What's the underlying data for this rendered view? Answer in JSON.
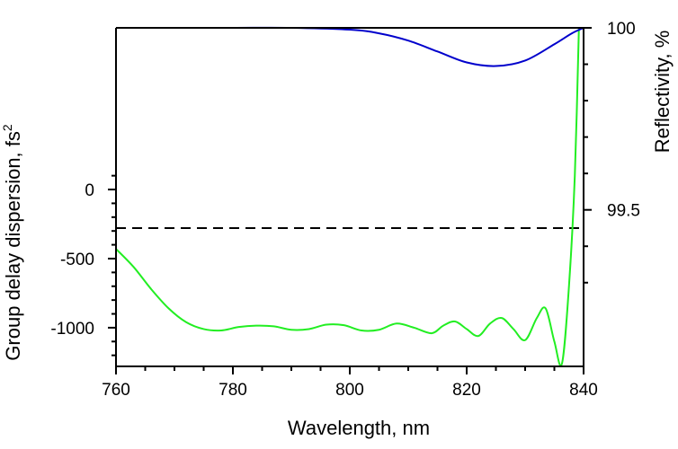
{
  "chart_data": {
    "type": "line",
    "xlabel": "Wavelength, nm",
    "ylabel_left": "Group delay dispersion, fs",
    "ylabel_left_superscript": "2",
    "ylabel_right": "Reflectivity, %",
    "xlim": [
      760,
      840
    ],
    "ylim_left": [
      -1280,
      1170
    ],
    "ylim_right": [
      99.07,
      100.0
    ],
    "x_ticks": [
      760,
      780,
      800,
      820,
      840
    ],
    "x_tick_labels": [
      "760",
      "780",
      "800",
      "820",
      "840"
    ],
    "y_left_ticks": [
      -1000,
      -500,
      0
    ],
    "y_left_tick_labels": [
      "-1000",
      "-500",
      "0"
    ],
    "y_right_ticks": [
      99.5,
      100
    ],
    "y_right_tick_labels": [
      "99.5",
      "100"
    ],
    "reference_line": {
      "axis": "right",
      "value": 99.45,
      "style": "dashed",
      "color": "#000000"
    },
    "series": [
      {
        "name": "Group delay dispersion",
        "axis": "left",
        "color": "#22ee22",
        "x": [
          760,
          763,
          766,
          769,
          772,
          775,
          778,
          781,
          784,
          787,
          790,
          793,
          796,
          799,
          802,
          805,
          808,
          811,
          814,
          816,
          818,
          820,
          822,
          824,
          826,
          828,
          830,
          832,
          833.5,
          835,
          836.3,
          837.5,
          838.5,
          839.2
        ],
        "y": [
          -430,
          -560,
          -720,
          -860,
          -960,
          -1010,
          -1020,
          -995,
          -985,
          -990,
          -1015,
          -1010,
          -978,
          -982,
          -1020,
          -1015,
          -970,
          -1000,
          -1040,
          -985,
          -955,
          -1010,
          -1060,
          -970,
          -930,
          -1010,
          -1090,
          -930,
          -860,
          -1100,
          -1260,
          -700,
          100,
          1170
        ]
      },
      {
        "name": "Reflectivity",
        "axis": "right",
        "color": "#0000cc",
        "x": [
          760,
          770,
          780,
          790,
          800,
          805,
          810,
          815,
          820,
          825,
          830,
          835,
          838,
          840
        ],
        "y": [
          100.0,
          100.0,
          100.0,
          100.0,
          99.995,
          99.985,
          99.965,
          99.935,
          99.905,
          99.895,
          99.91,
          99.955,
          99.985,
          100.0
        ]
      }
    ]
  }
}
